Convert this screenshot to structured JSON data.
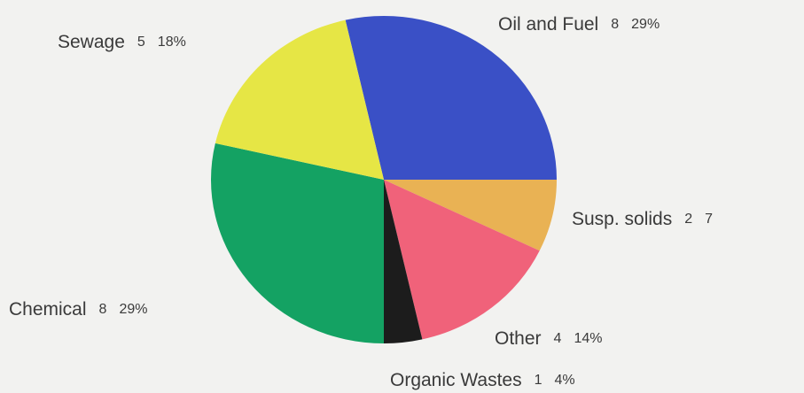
{
  "chart_data": {
    "type": "pie",
    "categories": [
      "Oil and Fuel",
      "Susp. solids",
      "Other",
      "Organic Wastes",
      "Chemical",
      "Sewage"
    ],
    "values": [
      8,
      2,
      4,
      1,
      8,
      5
    ],
    "percent_labels": [
      "29%",
      "7",
      "14%",
      "4%",
      "29%",
      "18%"
    ],
    "colors": [
      "#3a50c6",
      "#e9b254",
      "#f0627a",
      "#1c1c1c",
      "#14a263",
      "#e6e645"
    ]
  }
}
